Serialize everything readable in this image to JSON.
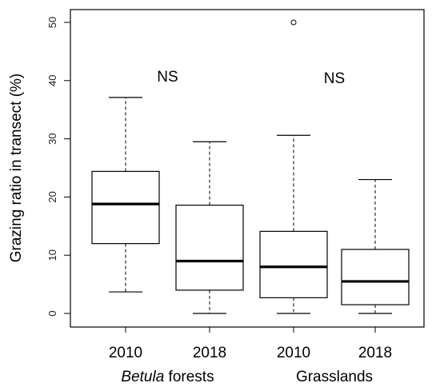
{
  "chart_data": {
    "type": "box",
    "ylabel": "Grazing ratio in transect (%)",
    "ylim": [
      0,
      50
    ],
    "yticks": [
      0,
      10,
      20,
      30,
      40,
      50
    ],
    "grid": false,
    "categories": [
      "2010",
      "2018",
      "2010",
      "2018"
    ],
    "groups": [
      {
        "label_italic": "Betula",
        "label_rest": " forests",
        "categories": [
          0,
          1
        ]
      },
      {
        "label_italic": "",
        "label_rest": "Grasslands",
        "categories": [
          2,
          3
        ]
      }
    ],
    "boxes": [
      {
        "min": 3.7,
        "q1": 12.0,
        "median": 18.8,
        "q3": 24.4,
        "max": 37.1,
        "outliers": []
      },
      {
        "min": 0.0,
        "q1": 4.0,
        "median": 9.0,
        "q3": 18.6,
        "max": 29.5,
        "outliers": []
      },
      {
        "min": 0.0,
        "q1": 2.7,
        "median": 8.0,
        "q3": 14.1,
        "max": 30.6,
        "outliers": [
          50.0
        ]
      },
      {
        "min": 0.0,
        "q1": 1.5,
        "median": 5.5,
        "q3": 11.0,
        "max": 23.0,
        "outliers": []
      }
    ],
    "annotations": [
      {
        "text": "NS",
        "group": 0,
        "y": 40.8
      },
      {
        "text": "NS",
        "group": 1,
        "y": 40.5
      }
    ]
  }
}
